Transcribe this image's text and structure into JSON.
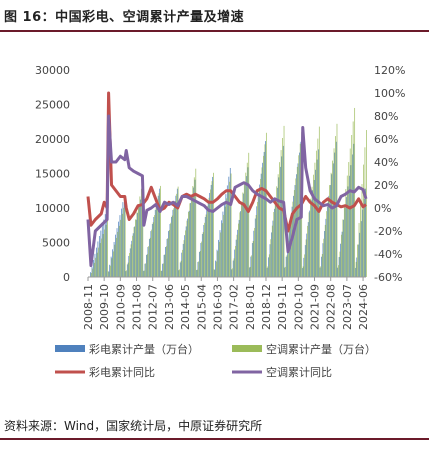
{
  "figure": {
    "title": "图 16：中国彩电、空调累计产量及增速",
    "source": "资料来源：Wind，国家统计局，中原证券研究所"
  },
  "colors": {
    "tv_prod": "#4f81bd",
    "ac_prod": "#9bbb59",
    "tv_yoy": "#c0504d",
    "ac_yoy": "#8064a2",
    "rule": "#6b1a2a"
  },
  "chart_data": {
    "type": "bar",
    "x_ticks": [
      "2008-11",
      "2009-10",
      "2010-09",
      "2011-08",
      "2012-07",
      "2013-06",
      "2014-05",
      "2015-04",
      "2016-03",
      "2017-02",
      "2018-01",
      "2018-12",
      "2019-11",
      "2020-10",
      "2021-09",
      "2022-08",
      "2023-07",
      "2024-06"
    ],
    "y_left": {
      "ticks": [
        "0",
        "5000",
        "10000",
        "15000",
        "20000",
        "25000",
        "30000"
      ],
      "ylim": [
        0,
        30000
      ]
    },
    "y_right": {
      "ticks": [
        "-60%",
        "-40%",
        "-20%",
        "0%",
        "20%",
        "40%",
        "60%",
        "80%",
        "100%",
        "120%"
      ],
      "ylim": [
        -60,
        120
      ]
    },
    "x_range": [
      "2008-11",
      "2024-08"
    ],
    "grid": false,
    "legend_position": "bottom",
    "series": [
      {
        "name": "彩电累计产量（万台）",
        "type": "bar",
        "axis": "left",
        "note": "cumulative YTD; yearly totals (resets each January)",
        "years": [
          2009,
          2010,
          2011,
          2012,
          2013,
          2014,
          2015,
          2016,
          2017,
          2018,
          2019,
          2020,
          2021,
          2022,
          2023,
          2024
        ],
        "yearly_total": [
          9900,
          11800,
          12200,
          12800,
          12800,
          14100,
          14500,
          15800,
          15900,
          19700,
          19000,
          19600,
          18500,
          19600,
          19300,
          12800
        ]
      },
      {
        "name": "空调累计产量（万台）",
        "type": "bar",
        "axis": "left",
        "note": "cumulative YTD; yearly totals (resets each January)",
        "years": [
          2009,
          2010,
          2011,
          2012,
          2013,
          2014,
          2015,
          2016,
          2017,
          2018,
          2019,
          2020,
          2021,
          2022,
          2023,
          2024
        ],
        "yearly_total": [
          8200,
          10900,
          13900,
          13200,
          13100,
          15700,
          15100,
          15000,
          18000,
          20900,
          21900,
          21000,
          21800,
          22200,
          24500,
          21300
        ]
      },
      {
        "name": "彩电累计同比",
        "type": "line",
        "axis": "right",
        "points": [
          [
            "2008-11",
            10
          ],
          [
            "2009-01",
            -15
          ],
          [
            "2009-04",
            -10
          ],
          [
            "2009-08",
            -5
          ],
          [
            "2009-10",
            5
          ],
          [
            "2009-12",
            0
          ],
          [
            "2010-01",
            100
          ],
          [
            "2010-02",
            60
          ],
          [
            "2010-03",
            20
          ],
          [
            "2010-06",
            15
          ],
          [
            "2010-09",
            10
          ],
          [
            "2010-12",
            10
          ],
          [
            "2011-01",
            0
          ],
          [
            "2011-03",
            -10
          ],
          [
            "2011-06",
            -5
          ],
          [
            "2011-09",
            2
          ],
          [
            "2011-12",
            3
          ],
          [
            "2012-03",
            8
          ],
          [
            "2012-06",
            18
          ],
          [
            "2012-09",
            8
          ],
          [
            "2012-12",
            -2
          ],
          [
            "2013-03",
            0
          ],
          [
            "2013-06",
            5
          ],
          [
            "2013-09",
            3
          ],
          [
            "2013-12",
            0
          ],
          [
            "2014-03",
            10
          ],
          [
            "2014-06",
            12
          ],
          [
            "2014-09",
            10
          ],
          [
            "2014-12",
            12
          ],
          [
            "2015-03",
            10
          ],
          [
            "2015-06",
            8
          ],
          [
            "2015-09",
            5
          ],
          [
            "2015-12",
            5
          ],
          [
            "2016-03",
            8
          ],
          [
            "2016-06",
            12
          ],
          [
            "2016-09",
            15
          ],
          [
            "2016-12",
            15
          ],
          [
            "2017-03",
            10
          ],
          [
            "2017-06",
            5
          ],
          [
            "2017-09",
            3
          ],
          [
            "2017-12",
            -3
          ],
          [
            "2018-03",
            5
          ],
          [
            "2018-06",
            15
          ],
          [
            "2018-09",
            17
          ],
          [
            "2018-12",
            15
          ],
          [
            "2019-03",
            10
          ],
          [
            "2019-06",
            5
          ],
          [
            "2019-09",
            0
          ],
          [
            "2019-12",
            -2
          ],
          [
            "2020-03",
            -20
          ],
          [
            "2020-06",
            -5
          ],
          [
            "2020-09",
            0
          ],
          [
            "2020-12",
            3
          ],
          [
            "2021-03",
            10
          ],
          [
            "2021-06",
            5
          ],
          [
            "2021-09",
            2
          ],
          [
            "2021-12",
            -3
          ],
          [
            "2022-03",
            5
          ],
          [
            "2022-06",
            8
          ],
          [
            "2022-09",
            5
          ],
          [
            "2022-12",
            3
          ],
          [
            "2023-03",
            1
          ],
          [
            "2023-06",
            2
          ],
          [
            "2023-09",
            0
          ],
          [
            "2023-12",
            2
          ],
          [
            "2024-03",
            8
          ],
          [
            "2024-06",
            1
          ],
          [
            "2024-08",
            3
          ]
        ]
      },
      {
        "name": "空调累计同比",
        "type": "line",
        "axis": "right",
        "points": [
          [
            "2008-11",
            -10
          ],
          [
            "2009-01",
            -50
          ],
          [
            "2009-04",
            -20
          ],
          [
            "2009-08",
            -15
          ],
          [
            "2009-12",
            -10
          ],
          [
            "2010-01",
            80
          ],
          [
            "2010-03",
            40
          ],
          [
            "2010-06",
            40
          ],
          [
            "2010-09",
            45
          ],
          [
            "2010-12",
            42
          ],
          [
            "2011-01",
            50
          ],
          [
            "2011-03",
            35
          ],
          [
            "2011-06",
            32
          ],
          [
            "2011-09",
            30
          ],
          [
            "2011-12",
            28
          ],
          [
            "2012-01",
            -15
          ],
          [
            "2012-03",
            -2
          ],
          [
            "2012-06",
            0
          ],
          [
            "2012-09",
            3
          ],
          [
            "2012-12",
            -3
          ],
          [
            "2013-03",
            5
          ],
          [
            "2013-06",
            3
          ],
          [
            "2013-09",
            5
          ],
          [
            "2013-12",
            2
          ],
          [
            "2014-03",
            10
          ],
          [
            "2014-06",
            10
          ],
          [
            "2014-09",
            8
          ],
          [
            "2014-12",
            6
          ],
          [
            "2015-03",
            4
          ],
          [
            "2015-06",
            2
          ],
          [
            "2015-09",
            -2
          ],
          [
            "2015-12",
            -3
          ],
          [
            "2016-03",
            0
          ],
          [
            "2016-06",
            3
          ],
          [
            "2016-09",
            5
          ],
          [
            "2016-12",
            3
          ],
          [
            "2017-03",
            18
          ],
          [
            "2017-06",
            20
          ],
          [
            "2017-09",
            22
          ],
          [
            "2017-12",
            20
          ],
          [
            "2018-03",
            15
          ],
          [
            "2018-06",
            12
          ],
          [
            "2018-09",
            10
          ],
          [
            "2018-12",
            8
          ],
          [
            "2019-03",
            5
          ],
          [
            "2019-06",
            8
          ],
          [
            "2019-09",
            6
          ],
          [
            "2019-12",
            5
          ],
          [
            "2020-03",
            -38
          ],
          [
            "2020-06",
            -25
          ],
          [
            "2020-09",
            -10
          ],
          [
            "2020-12",
            -8
          ],
          [
            "2021-01",
            70
          ],
          [
            "2021-03",
            35
          ],
          [
            "2021-06",
            15
          ],
          [
            "2021-09",
            8
          ],
          [
            "2021-12",
            5
          ],
          [
            "2022-03",
            2
          ],
          [
            "2022-06",
            3
          ],
          [
            "2022-09",
            0
          ],
          [
            "2022-12",
            2
          ],
          [
            "2023-03",
            10
          ],
          [
            "2023-06",
            12
          ],
          [
            "2023-09",
            15
          ],
          [
            "2023-12",
            14
          ],
          [
            "2024-03",
            18
          ],
          [
            "2024-06",
            16
          ],
          [
            "2024-08",
            8
          ]
        ]
      }
    ]
  }
}
